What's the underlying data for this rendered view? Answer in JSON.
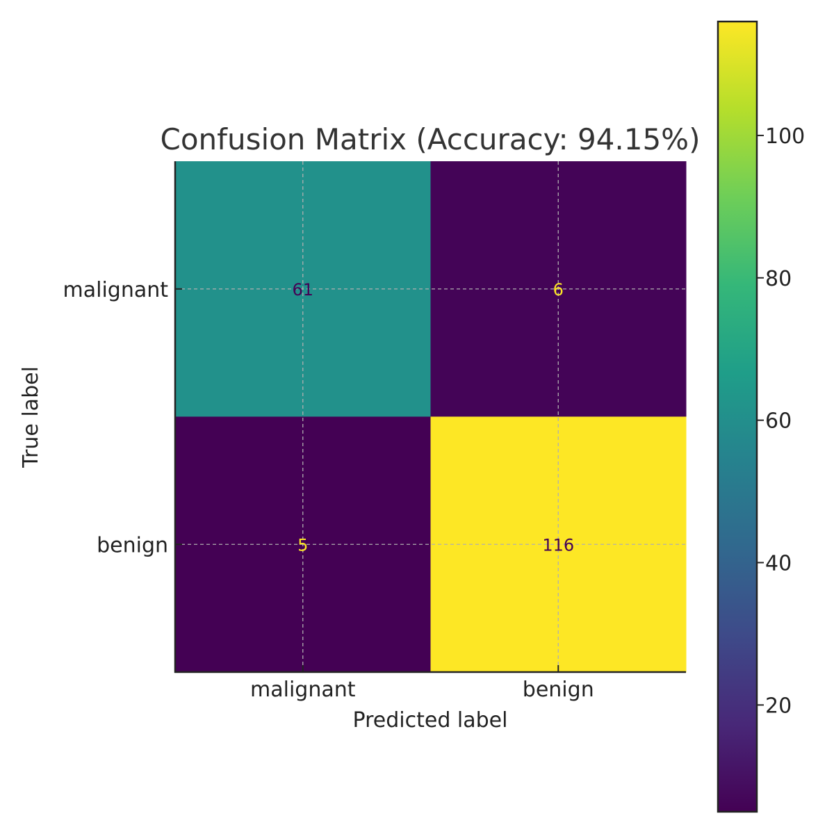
{
  "chart_data": {
    "type": "heatmap",
    "title": "Confusion Matrix (Accuracy: 94.15%)",
    "xlabel": "Predicted label",
    "ylabel": "True label",
    "x_categories": [
      "malignant",
      "benign"
    ],
    "y_categories": [
      "malignant",
      "benign"
    ],
    "values": [
      [
        61,
        6
      ],
      [
        5,
        116
      ]
    ],
    "colormap": "viridis",
    "color_range": [
      5,
      116
    ],
    "colorbar_ticks": [
      20,
      40,
      60,
      80,
      100
    ],
    "grid": true,
    "cell_text_colors": {
      "dark_bg": "#fde725",
      "light_bg": "#440154"
    }
  }
}
